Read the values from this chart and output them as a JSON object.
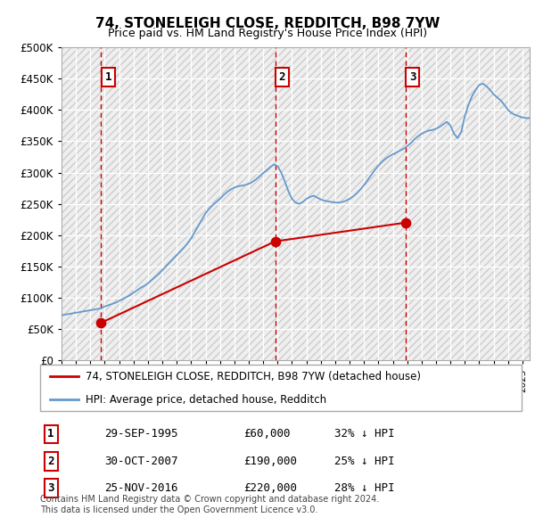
{
  "title": "74, STONELEIGH CLOSE, REDDITCH, B98 7YW",
  "subtitle": "Price paid vs. HM Land Registry's House Price Index (HPI)",
  "ylim": [
    0,
    500000
  ],
  "yticks": [
    0,
    50000,
    100000,
    150000,
    200000,
    250000,
    300000,
    350000,
    400000,
    450000,
    500000
  ],
  "xlim_start": 1993.0,
  "xlim_end": 2025.5,
  "sale_dates": [
    1995.75,
    2007.83,
    2016.9
  ],
  "sale_prices": [
    60000,
    190000,
    220000
  ],
  "sale_labels": [
    "1",
    "2",
    "3"
  ],
  "hpi_line_color": "#6699cc",
  "sale_line_color": "#cc0000",
  "sale_marker_color": "#cc0000",
  "vline_color": "#cc0000",
  "legend_sale_label": "74, STONELEIGH CLOSE, REDDITCH, B98 7YW (detached house)",
  "legend_hpi_label": "HPI: Average price, detached house, Redditch",
  "table_rows": [
    [
      "1",
      "29-SEP-1995",
      "£60,000",
      "32% ↓ HPI"
    ],
    [
      "2",
      "30-OCT-2007",
      "£190,000",
      "25% ↓ HPI"
    ],
    [
      "3",
      "25-NOV-2016",
      "£220,000",
      "28% ↓ HPI"
    ]
  ],
  "footnote": "Contains HM Land Registry data © Crown copyright and database right 2024.\nThis data is licensed under the Open Government Licence v3.0.",
  "hpi_values": [
    72000,
    73000,
    74000,
    75000,
    76000,
    77000,
    78000,
    79000,
    80000,
    81000,
    82000,
    83000,
    86000,
    88000,
    90000,
    92000,
    95000,
    98000,
    101000,
    104000,
    108000,
    112000,
    116000,
    119000,
    123000,
    128000,
    133000,
    138000,
    144000,
    150000,
    156000,
    162000,
    168000,
    174000,
    180000,
    187000,
    195000,
    205000,
    215000,
    225000,
    235000,
    242000,
    248000,
    253000,
    258000,
    264000,
    269000,
    273000,
    276000,
    278000,
    279000,
    280000,
    282000,
    285000,
    289000,
    294000,
    299000,
    304000,
    309000,
    313000,
    310000,
    300000,
    286000,
    270000,
    258000,
    252000,
    250000,
    253000,
    258000,
    261000,
    263000,
    260000,
    257000,
    255000,
    254000,
    253000,
    252000,
    252000,
    253000,
    255000,
    258000,
    262000,
    267000,
    273000,
    280000,
    288000,
    296000,
    304000,
    311000,
    317000,
    322000,
    326000,
    329000,
    332000,
    335000,
    338000,
    342000,
    347000,
    353000,
    358000,
    362000,
    365000,
    367000,
    368000,
    370000,
    373000,
    377000,
    381000,
    375000,
    362000,
    355000,
    365000,
    390000,
    408000,
    422000,
    432000,
    440000,
    442000,
    438000,
    432000,
    425000,
    420000,
    415000,
    408000,
    400000,
    395000,
    392000,
    390000,
    388000,
    387000,
    387000,
    388000,
    390000,
    392000,
    394000
  ]
}
